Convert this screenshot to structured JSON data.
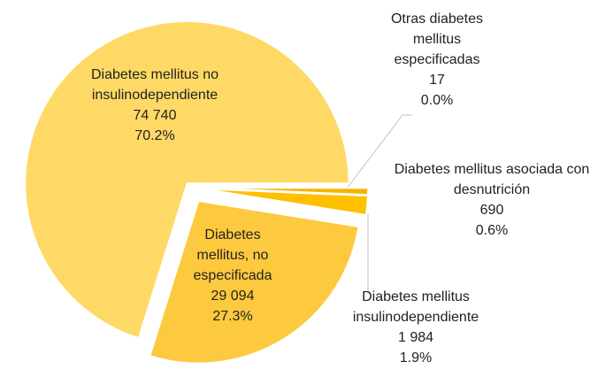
{
  "chart_data": {
    "type": "pie",
    "categories": [
      "Otras diabetes mellitus especificadas",
      "Diabetes mellitus asociada con desnutrición",
      "Diabetes mellitus insulinodependiente",
      "Diabetes mellitus, no especificada",
      "Diabetes mellitus no insulinodependiente"
    ],
    "values": [
      17,
      690,
      1984,
      29094,
      74740
    ],
    "value_labels": [
      "17",
      "690",
      "1 984",
      "29 094",
      "74 740"
    ],
    "percents": [
      0.0,
      0.6,
      1.9,
      27.3,
      70.2
    ],
    "percent_labels": [
      "0.0%",
      "0.6%",
      "1.9%",
      "27.3%",
      "70.2%"
    ],
    "colors": [
      "#ffd966",
      "#f4b400",
      "#ffc000",
      "#fdc93e",
      "#ffd966"
    ]
  }
}
